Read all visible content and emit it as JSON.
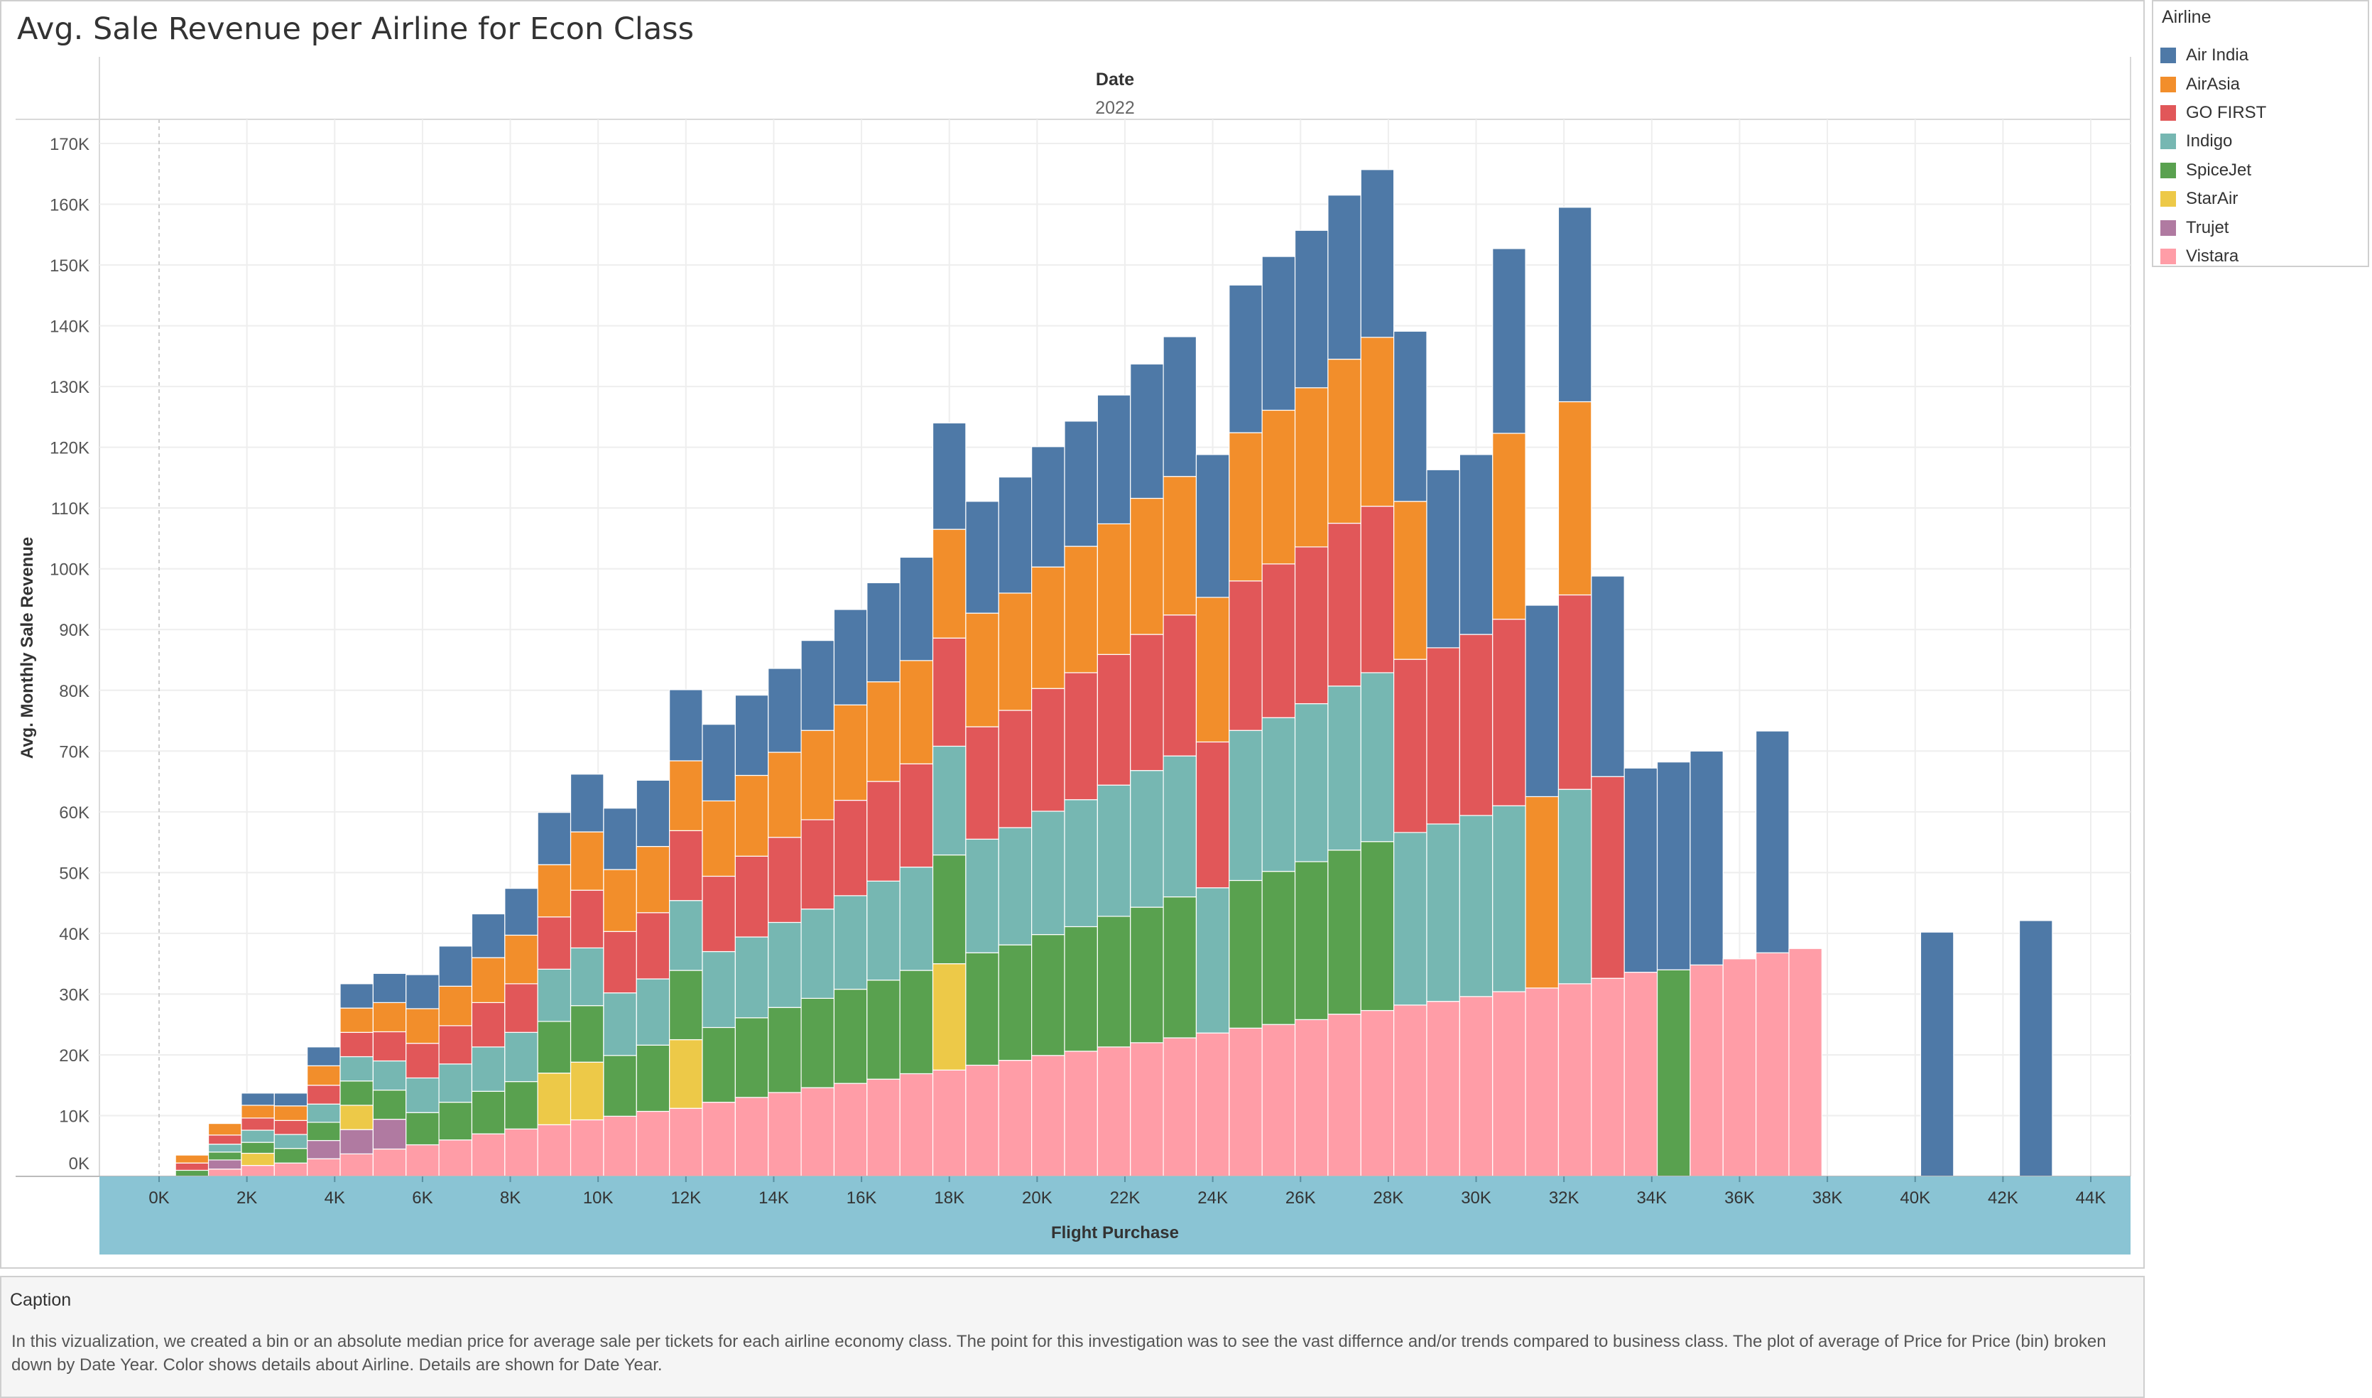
{
  "title": "Avg. Sale Revenue per Airline for Econ Class",
  "legend": {
    "title": "Airline",
    "items": [
      {
        "label": "Air India",
        "color": "#4e79a7"
      },
      {
        "label": "AirAsia",
        "color": "#f28e2b"
      },
      {
        "label": "GO FIRST",
        "color": "#e15759"
      },
      {
        "label": "Indigo",
        "color": "#76b7b2"
      },
      {
        "label": "SpiceJet",
        "color": "#59a14f"
      },
      {
        "label": "StarAir",
        "color": "#edc948"
      },
      {
        "label": "Trujet",
        "color": "#b07aa1"
      },
      {
        "label": "Vistara",
        "color": "#ff9da7"
      }
    ]
  },
  "caption": {
    "title": "Caption",
    "text": "In this vizualization, we created a bin or an absolute median price for average sale per tickets for each airline economy class. The point for this investigation was to see the vast differnce and/or trends compared to business class. The plot of average of Price for Price (bin) broken down by Date Year. Color shows details about Airline. Details are shown for Date Year."
  },
  "chart_data": {
    "type": "bar",
    "stacked": true,
    "title": "Avg. Sale Revenue per Airline for Econ Class",
    "column_header": "Date",
    "column_value": "2022",
    "xlabel": "Flight Purchase",
    "ylabel": "Avg. Monthly Sale Revenue",
    "ylim": [
      0,
      170000
    ],
    "xlim": [
      0,
      45000
    ],
    "bin_width": 750,
    "stack_order": [
      "Vistara",
      "Trujet",
      "StarAir",
      "SpiceJet",
      "Indigo",
      "GO FIRST",
      "AirAsia",
      "Air India"
    ],
    "x_ticks": [
      "0K",
      "2K",
      "4K",
      "6K",
      "8K",
      "10K",
      "12K",
      "14K",
      "16K",
      "18K",
      "20K",
      "22K",
      "24K",
      "26K",
      "28K",
      "30K",
      "32K",
      "34K",
      "36K",
      "38K",
      "40K",
      "42K",
      "44K"
    ],
    "y_ticks": [
      "0K",
      "10K",
      "20K",
      "30K",
      "40K",
      "50K",
      "60K",
      "70K",
      "80K",
      "90K",
      "100K",
      "110K",
      "120K",
      "130K",
      "140K",
      "150K",
      "160K",
      "170K"
    ],
    "grid": true,
    "legend_position": "right",
    "bins": [
      {
        "x": 750,
        "values": {
          "SpiceJet": 1000,
          "GO FIRST": 1200,
          "AirAsia": 1300
        }
      },
      {
        "x": 1500,
        "values": {
          "Vistara": 1200,
          "Trujet": 1500,
          "SpiceJet": 1300,
          "Indigo": 1300,
          "GO FIRST": 1500,
          "AirAsia": 1900
        }
      },
      {
        "x": 2250,
        "values": {
          "Vistara": 1800,
          "StarAir": 2000,
          "SpiceJet": 1800,
          "Indigo": 2000,
          "GO FIRST": 2000,
          "AirAsia": 2100,
          "Air India": 2000
        }
      },
      {
        "x": 3000,
        "values": {
          "Vistara": 2200,
          "SpiceJet": 2400,
          "Indigo": 2300,
          "GO FIRST": 2300,
          "AirAsia": 2400,
          "Air India": 2100
        }
      },
      {
        "x": 3750,
        "values": {
          "Vistara": 2900,
          "Trujet": 3000,
          "SpiceJet": 3000,
          "Indigo": 3000,
          "GO FIRST": 3100,
          "AirAsia": 3200,
          "Air India": 3100
        }
      },
      {
        "x": 4500,
        "values": {
          "Vistara": 3700,
          "Trujet": 4000,
          "StarAir": 4000,
          "SpiceJet": 4000,
          "Indigo": 4000,
          "GO FIRST": 4000,
          "AirAsia": 4000,
          "Air India": 4000
        }
      },
      {
        "x": 5250,
        "values": {
          "Vistara": 4500,
          "Trujet": 4900,
          "SpiceJet": 4800,
          "Indigo": 4800,
          "GO FIRST": 4800,
          "AirAsia": 4800,
          "Air India": 4800
        }
      },
      {
        "x": 6000,
        "values": {
          "Vistara": 5200,
          "SpiceJet": 5300,
          "Indigo": 5700,
          "GO FIRST": 5700,
          "AirAsia": 5700,
          "Air India": 5600
        }
      },
      {
        "x": 6750,
        "values": {
          "Vistara": 6000,
          "SpiceJet": 6200,
          "Indigo": 6300,
          "GO FIRST": 6300,
          "AirAsia": 6500,
          "Air India": 6600
        }
      },
      {
        "x": 7500,
        "values": {
          "Vistara": 7000,
          "SpiceJet": 7000,
          "Indigo": 7300,
          "GO FIRST": 7300,
          "AirAsia": 7400,
          "Air India": 7200
        }
      },
      {
        "x": 8250,
        "values": {
          "Vistara": 7800,
          "SpiceJet": 7800,
          "Indigo": 8100,
          "GO FIRST": 8000,
          "AirAsia": 8000,
          "Air India": 7700
        }
      },
      {
        "x": 9000,
        "values": {
          "Vistara": 8500,
          "StarAir": 8500,
          "SpiceJet": 8500,
          "Indigo": 8600,
          "GO FIRST": 8600,
          "AirAsia": 8600,
          "Air India": 8600
        }
      },
      {
        "x": 9750,
        "values": {
          "Vistara": 9300,
          "StarAir": 9500,
          "SpiceJet": 9300,
          "Indigo": 9500,
          "GO FIRST": 9500,
          "AirAsia": 9600,
          "Air India": 9500
        }
      },
      {
        "x": 10500,
        "values": {
          "Vistara": 9900,
          "SpiceJet": 10000,
          "Indigo": 10300,
          "GO FIRST": 10100,
          "AirAsia": 10200,
          "Air India": 10100
        }
      },
      {
        "x": 11250,
        "values": {
          "Vistara": 10700,
          "SpiceJet": 10900,
          "Indigo": 10900,
          "GO FIRST": 10900,
          "AirAsia": 10900,
          "Air India": 10900
        }
      },
      {
        "x": 12000,
        "values": {
          "Vistara": 11200,
          "StarAir": 11300,
          "SpiceJet": 11400,
          "Indigo": 11500,
          "GO FIRST": 11500,
          "AirAsia": 11500,
          "Air India": 11700
        }
      },
      {
        "x": 12750,
        "values": {
          "Vistara": 12200,
          "SpiceJet": 12300,
          "Indigo": 12500,
          "GO FIRST": 12400,
          "AirAsia": 12400,
          "Air India": 12600
        }
      },
      {
        "x": 13500,
        "values": {
          "Vistara": 13000,
          "SpiceJet": 13100,
          "Indigo": 13300,
          "GO FIRST": 13300,
          "AirAsia": 13300,
          "Air India": 13200
        }
      },
      {
        "x": 14250,
        "values": {
          "Vistara": 13800,
          "SpiceJet": 14000,
          "Indigo": 14000,
          "GO FIRST": 14000,
          "AirAsia": 14000,
          "Air India": 13800
        }
      },
      {
        "x": 15000,
        "values": {
          "Vistara": 14600,
          "SpiceJet": 14700,
          "Indigo": 14700,
          "GO FIRST": 14700,
          "AirAsia": 14700,
          "Air India": 14800
        }
      },
      {
        "x": 15750,
        "values": {
          "Vistara": 15300,
          "SpiceJet": 15500,
          "Indigo": 15400,
          "GO FIRST": 15700,
          "AirAsia": 15700,
          "Air India": 15700
        }
      },
      {
        "x": 16500,
        "values": {
          "Vistara": 16000,
          "SpiceJet": 16300,
          "Indigo": 16300,
          "GO FIRST": 16400,
          "AirAsia": 16400,
          "Air India": 16300
        }
      },
      {
        "x": 17250,
        "values": {
          "Vistara": 16900,
          "SpiceJet": 17000,
          "Indigo": 17000,
          "GO FIRST": 17000,
          "AirAsia": 17000,
          "Air India": 17000
        }
      },
      {
        "x": 18000,
        "values": {
          "Vistara": 17500,
          "StarAir": 17500,
          "SpiceJet": 17900,
          "Indigo": 17900,
          "GO FIRST": 17800,
          "AirAsia": 17900,
          "Air India": 17500
        }
      },
      {
        "x": 18750,
        "values": {
          "Vistara": 18300,
          "SpiceJet": 18500,
          "Indigo": 18700,
          "GO FIRST": 18500,
          "AirAsia": 18700,
          "Air India": 18400
        }
      },
      {
        "x": 19500,
        "values": {
          "Vistara": 19100,
          "SpiceJet": 19000,
          "Indigo": 19300,
          "GO FIRST": 19300,
          "AirAsia": 19300,
          "Air India": 19100
        }
      },
      {
        "x": 20250,
        "values": {
          "Vistara": 19900,
          "SpiceJet": 19900,
          "Indigo": 20300,
          "GO FIRST": 20200,
          "AirAsia": 20000,
          "Air India": 19800
        }
      },
      {
        "x": 21000,
        "values": {
          "Vistara": 20600,
          "SpiceJet": 20500,
          "Indigo": 20900,
          "GO FIRST": 20900,
          "AirAsia": 20800,
          "Air India": 20600
        }
      },
      {
        "x": 21750,
        "values": {
          "Vistara": 21300,
          "SpiceJet": 21500,
          "Indigo": 21600,
          "GO FIRST": 21500,
          "AirAsia": 21500,
          "Air India": 21200
        }
      },
      {
        "x": 22500,
        "values": {
          "Vistara": 22000,
          "SpiceJet": 22300,
          "Indigo": 22500,
          "GO FIRST": 22400,
          "AirAsia": 22400,
          "Air India": 22100
        }
      },
      {
        "x": 23250,
        "values": {
          "Vistara": 22800,
          "SpiceJet": 23200,
          "Indigo": 23200,
          "GO FIRST": 23200,
          "AirAsia": 22800,
          "Air India": 23000
        }
      },
      {
        "x": 24000,
        "values": {
          "Vistara": 23600,
          "Indigo": 23900,
          "GO FIRST": 24000,
          "AirAsia": 23800,
          "Air India": 23500
        }
      },
      {
        "x": 24750,
        "values": {
          "Vistara": 24400,
          "SpiceJet": 24300,
          "Indigo": 24700,
          "GO FIRST": 24600,
          "AirAsia": 24400,
          "Air India": 24300
        }
      },
      {
        "x": 25500,
        "values": {
          "Vistara": 25000,
          "SpiceJet": 25200,
          "Indigo": 25300,
          "GO FIRST": 25300,
          "AirAsia": 25300,
          "Air India": 25300
        }
      },
      {
        "x": 26250,
        "values": {
          "Vistara": 25800,
          "SpiceJet": 26000,
          "Indigo": 26000,
          "GO FIRST": 25800,
          "AirAsia": 26200,
          "Air India": 25900
        }
      },
      {
        "x": 27000,
        "values": {
          "Vistara": 26700,
          "SpiceJet": 27000,
          "Indigo": 27000,
          "GO FIRST": 26800,
          "AirAsia": 27000,
          "Air India": 27000
        }
      },
      {
        "x": 27750,
        "values": {
          "Vistara": 27300,
          "SpiceJet": 27800,
          "Indigo": 27800,
          "GO FIRST": 27400,
          "AirAsia": 27800,
          "Air India": 27600
        }
      },
      {
        "x": 28500,
        "values": {
          "Vistara": 28200,
          "Indigo": 28400,
          "GO FIRST": 28500,
          "AirAsia": 26000,
          "Air India": 28000
        }
      },
      {
        "x": 29250,
        "values": {
          "Vistara": 28800,
          "Indigo": 29200,
          "GO FIRST": 29000,
          "Air India": 29300
        }
      },
      {
        "x": 30000,
        "values": {
          "Vistara": 29600,
          "Indigo": 29800,
          "GO FIRST": 29800,
          "Air India": 29600
        }
      },
      {
        "x": 30750,
        "values": {
          "Vistara": 30400,
          "Indigo": 30600,
          "GO FIRST": 30700,
          "AirAsia": 30600,
          "Air India": 30400
        }
      },
      {
        "x": 31500,
        "values": {
          "Vistara": 31000,
          "AirAsia": 31500,
          "Air India": 31500
        }
      },
      {
        "x": 32250,
        "values": {
          "Vistara": 31700,
          "Indigo": 32000,
          "GO FIRST": 32000,
          "AirAsia": 31800,
          "Air India": 32000
        }
      },
      {
        "x": 33000,
        "values": {
          "Vistara": 32600,
          "GO FIRST": 33200,
          "Air India": 33000
        }
      },
      {
        "x": 33750,
        "values": {
          "Vistara": 33600,
          "Air India": 33600
        }
      },
      {
        "x": 34500,
        "values": {
          "SpiceJet": 34000,
          "Air India": 34200
        }
      },
      {
        "x": 35250,
        "values": {
          "Vistara": 34800,
          "Air India": 35200
        }
      },
      {
        "x": 36000,
        "values": {
          "Vistara": 35800
        }
      },
      {
        "x": 36750,
        "values": {
          "Vistara": 36800,
          "Air India": 36500
        }
      },
      {
        "x": 37500,
        "values": {
          "Vistara": 37500
        }
      },
      {
        "x": 40500,
        "values": {
          "Air India": 40200
        }
      },
      {
        "x": 42750,
        "values": {
          "Air India": 42100
        }
      }
    ]
  }
}
